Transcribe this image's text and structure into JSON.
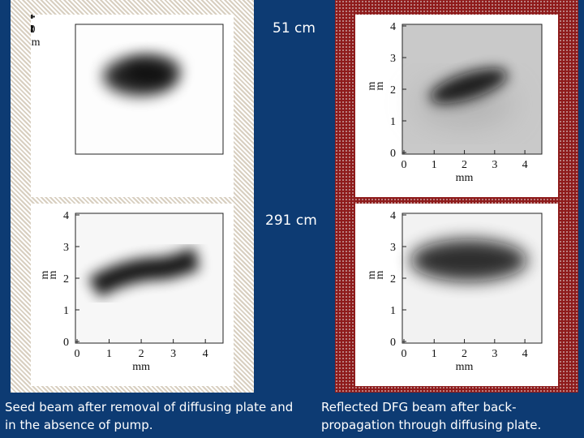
{
  "distance_labels": {
    "top": "51 cm",
    "bottom": "291 cm"
  },
  "axis": {
    "x_ticks": [
      "0",
      "1",
      "2",
      "3",
      "4"
    ],
    "y_ticks": [
      "0",
      "1",
      "2",
      "3",
      "4"
    ],
    "x_label": "mm",
    "y_label_line1": "m",
    "y_label_line2": "m"
  },
  "captions": {
    "left": "Seed beam after removal of diffusing plate and in the absence of pump.",
    "right": "Reflected DFG beam after back-propagation through diffusing plate."
  },
  "colors": {
    "background": "#0d3b73",
    "left_frame": "#d8cfc0",
    "right_frame": "#8e1b1b"
  }
}
